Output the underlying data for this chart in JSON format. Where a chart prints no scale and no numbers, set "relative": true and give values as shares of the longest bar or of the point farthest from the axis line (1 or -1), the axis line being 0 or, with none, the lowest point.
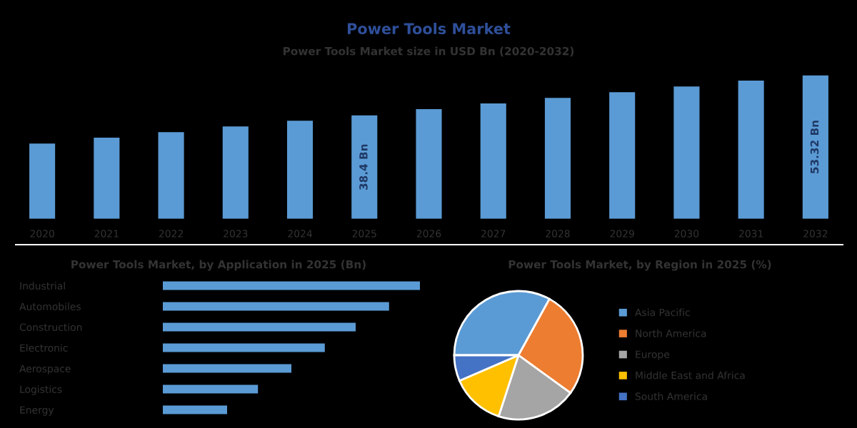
{
  "chart_data": [
    {
      "type": "bar",
      "title": "Power Tools Market",
      "subtitle": "Power Tools Market size in USD Bn (2020-2032)",
      "categories": [
        "2020",
        "2021",
        "2022",
        "2023",
        "2024",
        "2025",
        "2026",
        "2027",
        "2028",
        "2029",
        "2030",
        "2031",
        "2032"
      ],
      "values": [
        27.9,
        30.1,
        32.2,
        34.3,
        36.4,
        38.4,
        40.7,
        42.8,
        44.9,
        47.0,
        49.1,
        51.3,
        53.32
      ],
      "color": "#5b9bd5",
      "value_labels": [
        null,
        null,
        null,
        null,
        null,
        "38.4 Bn",
        null,
        null,
        null,
        null,
        null,
        null,
        "53.32 Bn"
      ],
      "tick_labels": "x"
    },
    {
      "type": "bar",
      "orientation": "horizontal",
      "relative": true,
      "title": "Power Tools Market, by Application in 2025 (Bn)",
      "categories": [
        "Industrial",
        "Automobiles",
        "Construction",
        "Electronic",
        "Aerospace",
        "Logistics",
        "Energy"
      ],
      "values": [
        1,
        0.88,
        0.75,
        0.63,
        0.5,
        0.37,
        0.25
      ],
      "color": "#5b9bd5"
    },
    {
      "type": "pie",
      "title": "Power Tools Market, by Region in 2025 (%)",
      "categories": [
        "Asia Pacific",
        "North America",
        "Europe",
        "Middle East and Africa",
        "South America"
      ],
      "values": [
        33,
        27,
        20,
        13.5,
        6.5
      ],
      "colors": [
        "#5b9bd5",
        "#ed7d31",
        "#a5a5a5",
        "#ffc000",
        "#4472c4"
      ],
      "legend": "right"
    }
  ]
}
